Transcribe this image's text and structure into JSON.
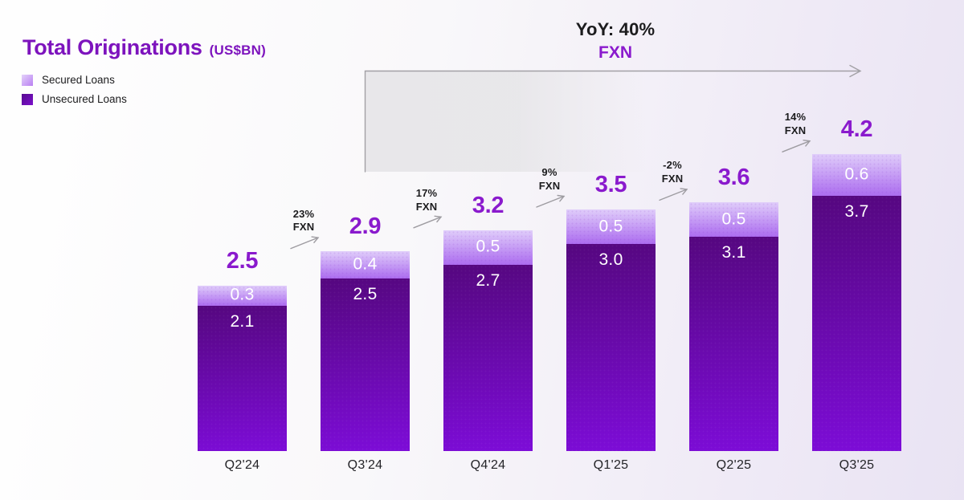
{
  "header": {
    "title": "Total Originations",
    "title_unit": "(US$BN)"
  },
  "legend": {
    "items": [
      {
        "label": "Secured Loans",
        "series_key": "secured"
      },
      {
        "label": "Unsecured Loans",
        "series_key": "unsecured"
      }
    ]
  },
  "yoy_banner": {
    "line1": "YoY: 40%",
    "line2": "FXN"
  },
  "colors": {
    "title_purple": "#7D13BD",
    "accent_purple": "#8A1ACD",
    "secured_gradient_top": "#E0CDFA",
    "secured_gradient_bottom": "#AC6CEF",
    "unsecured_gradient_top": "#55077F",
    "unsecured_gradient_bottom": "#7D0CD8",
    "arrow_gray": "#9E9CA1",
    "text_dark": "#1C1C1E",
    "bar_value_text": "#FFFFFF"
  },
  "chart_data": {
    "type": "bar",
    "stacked": true,
    "title": "Total Originations (US$BN)",
    "categories": [
      "Q2'24",
      "Q3'24",
      "Q4'24",
      "Q1'25",
      "Q2'25",
      "Q3'25"
    ],
    "series": [
      {
        "name": "Secured Loans",
        "values": [
          0.3,
          0.4,
          0.5,
          0.5,
          0.5,
          0.6
        ]
      },
      {
        "name": "Unsecured Loans",
        "values": [
          2.1,
          2.5,
          2.7,
          3.0,
          3.1,
          3.7
        ]
      }
    ],
    "totals": [
      2.5,
      2.9,
      3.2,
      3.5,
      3.6,
      4.2
    ],
    "growth_annotations": [
      {
        "between": [
          "Q2'24",
          "Q3'24"
        ],
        "line1": "23%",
        "line2": "FXN"
      },
      {
        "between": [
          "Q3'24",
          "Q4'24"
        ],
        "line1": "17%",
        "line2": "FXN"
      },
      {
        "between": [
          "Q4'24",
          "Q1'25"
        ],
        "line1": "9%",
        "line2": "FXN"
      },
      {
        "between": [
          "Q1'25",
          "Q2'25"
        ],
        "line1": "-2%",
        "line2": "FXN"
      },
      {
        "between": [
          "Q2'25",
          "Q3'25"
        ],
        "line1": "14%",
        "line2": "FXN"
      }
    ],
    "yoy_annotation": "YoY: 40% FXN",
    "legend_position": "top-left",
    "grid": false,
    "axes_visible": false,
    "value_labels": "inside segments, totals above bars"
  }
}
